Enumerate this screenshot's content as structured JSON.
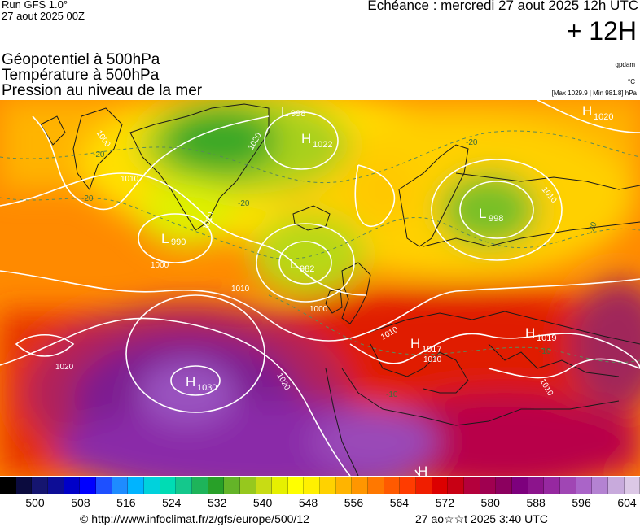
{
  "header": {
    "run": "Run GFS 1.0°",
    "run_date": "27 aout 2025 00Z",
    "echeance": "Echéance : mercredi 27 aout 2025 12h UTC",
    "lead": "+ 12H"
  },
  "parameters": [
    "Géopotentiel à 500hPa",
    "Température à 500hPa",
    "Pression au niveau de la mer"
  ],
  "units": {
    "geopotential": "gpdam",
    "temperature": "°C",
    "pressure_range": "[Max 1029.9 | Min 981.8] hPa"
  },
  "pressure_centers": [
    {
      "type": "L",
      "value": "998"
    },
    {
      "type": "H",
      "value": "1022"
    },
    {
      "type": "L",
      "value": "990"
    },
    {
      "type": "L",
      "value": "982"
    },
    {
      "type": "L",
      "value": "998"
    },
    {
      "type": "H",
      "value": "1020"
    },
    {
      "type": "H",
      "value": "1030"
    },
    {
      "type": "H",
      "value": "1017"
    },
    {
      "type": "H",
      "value": "1019"
    },
    {
      "type": "H",
      "value": ""
    }
  ],
  "isobar_labels": [
    "1000",
    "1010",
    "1020",
    "1010",
    "1000",
    "1010",
    "1000",
    "1010",
    "1020",
    "1010",
    "1020",
    "1010",
    "1010"
  ],
  "temperature_labels": [
    "-20",
    "-20",
    "-20",
    "-20",
    "-20",
    "-10",
    "-10"
  ],
  "legend": {
    "ticks": [
      "500",
      "508",
      "516",
      "524",
      "532",
      "540",
      "548",
      "556",
      "564",
      "572",
      "580",
      "588",
      "596",
      "604"
    ],
    "colors": [
      "#000000",
      "#0b0b3e",
      "#151570",
      "#0d0d96",
      "#0000c8",
      "#0000ff",
      "#1e50ff",
      "#1e8cff",
      "#00b4ff",
      "#00d2dc",
      "#00dcb4",
      "#14c88c",
      "#1eb45a",
      "#28a028",
      "#64b428",
      "#96c81e",
      "#c8dc14",
      "#e6f000",
      "#ffff00",
      "#fff000",
      "#ffd200",
      "#ffb400",
      "#ff9600",
      "#ff7800",
      "#ff5a00",
      "#ff3c00",
      "#f01e00",
      "#dc0000",
      "#c80014",
      "#b4003c",
      "#a00050",
      "#8c005f",
      "#7d007d",
      "#8c148c",
      "#9628a0",
      "#a046b4",
      "#aa64c8",
      "#b482d2",
      "#c8aadc",
      "#dcc8e6"
    ]
  },
  "footer": {
    "url": "© http://www.infoclimat.fr/z/gfs/europe/500/12",
    "date": "27 ao☆☆t 2025  3:40 UTC"
  }
}
